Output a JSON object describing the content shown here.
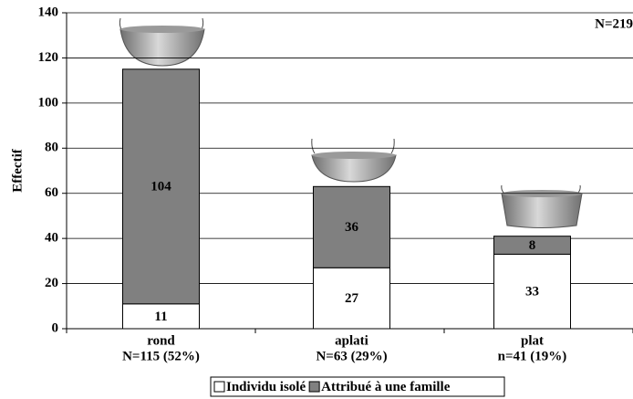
{
  "chart_data": {
    "type": "stacked-bar",
    "y_label": "Effectif",
    "annotation": "N=219",
    "categories": [
      "rond",
      "aplati",
      "plat"
    ],
    "category_counts": [
      "N=115 (52%)",
      "N=63 (29%)",
      "n=41 (19%)"
    ],
    "series": [
      {
        "name": "Individu isolé",
        "color": "#ffffff",
        "values": [
          11,
          27,
          33
        ]
      },
      {
        "name": "Attribué à une famille",
        "color": "#808080",
        "values": [
          104,
          36,
          8
        ]
      }
    ],
    "ylim": [
      0,
      140
    ],
    "yticks": [
      0,
      20,
      40,
      60,
      80,
      100,
      120,
      140
    ],
    "grid": true
  }
}
